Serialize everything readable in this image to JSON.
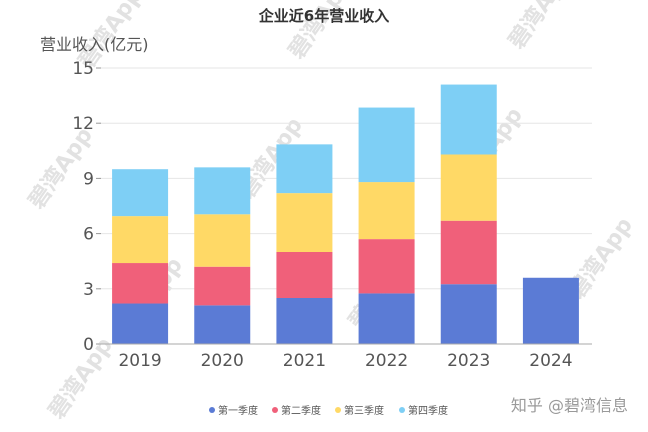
{
  "chart_data": {
    "type": "bar",
    "stacked": true,
    "title": "企业近6年营业收入",
    "ylabel": "营业收入(亿元)",
    "xlabel": "",
    "categories": [
      "2019",
      "2020",
      "2021",
      "2022",
      "2023",
      "2024"
    ],
    "ylim": [
      0,
      15
    ],
    "yticks": [
      0,
      3,
      6,
      9,
      12,
      15
    ],
    "grid": true,
    "legend_position": "bottom",
    "series": [
      {
        "name": "第一季度",
        "color": "#5b7bd5",
        "values": [
          2.2,
          2.1,
          2.5,
          2.75,
          3.25,
          3.6
        ]
      },
      {
        "name": "第二季度",
        "color": "#f0607a",
        "values": [
          2.2,
          2.1,
          2.5,
          2.95,
          3.45,
          null
        ]
      },
      {
        "name": "第三季度",
        "color": "#ffd966",
        "values": [
          2.55,
          2.85,
          3.2,
          3.1,
          3.6,
          null
        ]
      },
      {
        "name": "第四季度",
        "color": "#7ecff5",
        "values": [
          2.55,
          2.55,
          2.65,
          4.05,
          3.8,
          null
        ]
      }
    ]
  },
  "watermark": {
    "text": "碧湾App",
    "credit": "知乎 @碧湾信息"
  }
}
